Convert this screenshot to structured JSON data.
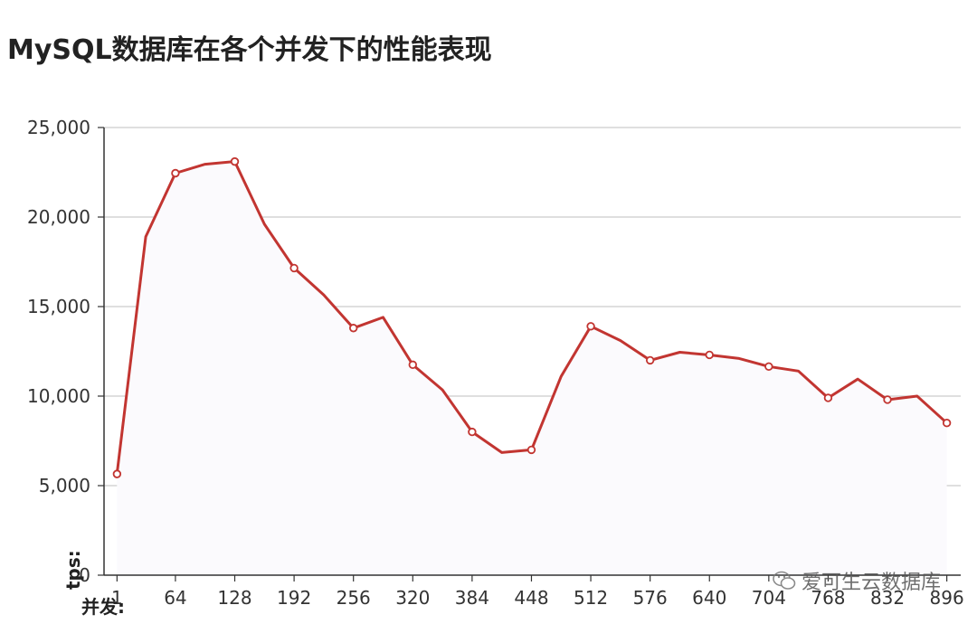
{
  "title": "MySQL数据库在各个并发下的性能表现",
  "watermark": "爱可生云数据库",
  "colors": {
    "line": "#c23531",
    "grid": "#cccccc",
    "axis": "#333333",
    "area": "#fbfafd"
  },
  "chart_data": {
    "type": "line",
    "title": "MySQL数据库在各个并发下的性能表现",
    "xlabel": "并发:",
    "ylabel": "tps:",
    "ylim": [
      0,
      25000
    ],
    "yticks": [
      "0",
      "5,000",
      "10,000",
      "15,000",
      "20,000",
      "25,000"
    ],
    "ytick_values": [
      0,
      5000,
      10000,
      15000,
      20000,
      25000
    ],
    "xticks": [
      "1",
      "64",
      "128",
      "192",
      "256",
      "320",
      "384",
      "448",
      "512",
      "576",
      "640",
      "704",
      "768",
      "832",
      "896"
    ],
    "xtick_values": [
      1,
      64,
      128,
      192,
      256,
      320,
      384,
      448,
      512,
      576,
      640,
      704,
      768,
      832,
      896
    ],
    "xlim": [
      -13,
      911
    ],
    "grid": true,
    "series": [
      {
        "x": [
          1,
          32,
          64,
          96,
          128,
          160,
          192,
          224,
          256,
          288,
          320,
          352,
          384,
          416,
          448,
          480,
          512,
          544,
          576,
          608,
          640,
          672,
          704,
          736,
          768,
          800,
          832,
          864,
          896
        ],
        "values": [
          5650,
          18900,
          22450,
          22950,
          23100,
          19600,
          17150,
          15650,
          13800,
          14400,
          11750,
          10350,
          8000,
          6850,
          7000,
          11100,
          13900,
          13100,
          12000,
          12450,
          12300,
          12100,
          11650,
          11400,
          9900,
          10950,
          9800,
          10000,
          8500
        ],
        "marked": [
          true,
          false,
          true,
          false,
          true,
          false,
          true,
          false,
          true,
          false,
          true,
          false,
          true,
          false,
          true,
          false,
          true,
          false,
          true,
          false,
          true,
          false,
          true,
          false,
          true,
          false,
          true,
          false,
          true
        ]
      }
    ]
  }
}
